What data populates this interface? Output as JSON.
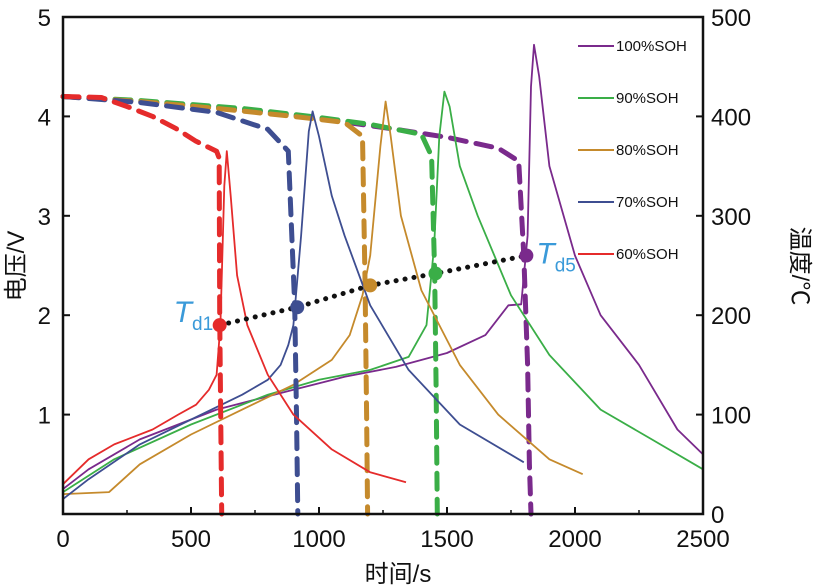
{
  "chart_data": {
    "type": "line",
    "x": {
      "label": "时间/s",
      "lim": [
        0,
        2500
      ],
      "ticks": [
        0,
        500,
        1000,
        1500,
        2000,
        2500
      ]
    },
    "y_left": {
      "label": "电压/V",
      "lim": [
        0,
        5
      ],
      "ticks": [
        1,
        2,
        3,
        4,
        5
      ]
    },
    "y_right": {
      "label": "温度/℃",
      "lim": [
        0,
        500
      ],
      "ticks": [
        0,
        100,
        200,
        300,
        400,
        500
      ]
    },
    "legend": {
      "position": "top-right"
    },
    "series": [
      {
        "name": "100%SOH",
        "color": "#7a2a8c",
        "voltage": [
          [
            0,
            4.2
          ],
          [
            300,
            4.15
          ],
          [
            700,
            4.07
          ],
          [
            1000,
            3.98
          ],
          [
            1300,
            3.87
          ],
          [
            1500,
            3.79
          ],
          [
            1700,
            3.68
          ],
          [
            1780,
            3.55
          ],
          [
            1800,
            2.6
          ],
          [
            1815,
            1.5
          ],
          [
            1822,
            0.5
          ],
          [
            1828,
            0
          ]
        ],
        "temperature": [
          [
            0,
            25
          ],
          [
            100,
            45
          ],
          [
            300,
            75
          ],
          [
            600,
            105
          ],
          [
            900,
            125
          ],
          [
            1100,
            138
          ],
          [
            1300,
            148
          ],
          [
            1500,
            162
          ],
          [
            1650,
            180
          ],
          [
            1740,
            210
          ],
          [
            1790,
            211
          ],
          [
            1815,
            280
          ],
          [
            1828,
            430
          ],
          [
            1840,
            472
          ],
          [
            1860,
            440
          ],
          [
            1900,
            350
          ],
          [
            2000,
            260
          ],
          [
            2100,
            200
          ],
          [
            2250,
            150
          ],
          [
            2400,
            85
          ],
          [
            2500,
            60
          ]
        ]
      },
      {
        "name": "90%SOH",
        "color": "#3aae47",
        "voltage": [
          [
            0,
            4.2
          ],
          [
            300,
            4.16
          ],
          [
            700,
            4.08
          ],
          [
            1000,
            3.99
          ],
          [
            1200,
            3.92
          ],
          [
            1400,
            3.82
          ],
          [
            1440,
            3.6
          ],
          [
            1452,
            2.4
          ],
          [
            1458,
            1.2
          ],
          [
            1462,
            0
          ]
        ],
        "temperature": [
          [
            0,
            22
          ],
          [
            200,
            55
          ],
          [
            500,
            90
          ],
          [
            800,
            120
          ],
          [
            1000,
            135
          ],
          [
            1200,
            145
          ],
          [
            1350,
            158
          ],
          [
            1420,
            190
          ],
          [
            1450,
            270
          ],
          [
            1470,
            380
          ],
          [
            1490,
            425
          ],
          [
            1510,
            410
          ],
          [
            1550,
            350
          ],
          [
            1620,
            300
          ],
          [
            1750,
            220
          ],
          [
            1900,
            160
          ],
          [
            2100,
            105
          ],
          [
            2300,
            75
          ],
          [
            2500,
            45
          ]
        ]
      },
      {
        "name": "80%SOH",
        "color": "#c58a2c",
        "voltage": [
          [
            0,
            4.2
          ],
          [
            300,
            4.15
          ],
          [
            600,
            4.08
          ],
          [
            900,
            4.0
          ],
          [
            1100,
            3.94
          ],
          [
            1170,
            3.8
          ],
          [
            1180,
            2.3
          ],
          [
            1186,
            1.0
          ],
          [
            1190,
            0
          ]
        ],
        "temperature": [
          [
            0,
            20
          ],
          [
            180,
            22
          ],
          [
            300,
            50
          ],
          [
            500,
            80
          ],
          [
            700,
            105
          ],
          [
            900,
            130
          ],
          [
            1050,
            155
          ],
          [
            1120,
            180
          ],
          [
            1170,
            220
          ],
          [
            1200,
            260
          ],
          [
            1240,
            370
          ],
          [
            1260,
            415
          ],
          [
            1280,
            380
          ],
          [
            1320,
            300
          ],
          [
            1400,
            225
          ],
          [
            1550,
            150
          ],
          [
            1700,
            100
          ],
          [
            1900,
            55
          ],
          [
            2030,
            40
          ]
        ]
      },
      {
        "name": "70%SOH",
        "color": "#3e4e91",
        "voltage": [
          [
            0,
            4.2
          ],
          [
            300,
            4.14
          ],
          [
            600,
            4.04
          ],
          [
            800,
            3.87
          ],
          [
            880,
            3.65
          ],
          [
            905,
            2.1
          ],
          [
            912,
            1.0
          ],
          [
            917,
            0
          ]
        ],
        "temperature": [
          [
            0,
            15
          ],
          [
            100,
            35
          ],
          [
            300,
            70
          ],
          [
            500,
            95
          ],
          [
            700,
            120
          ],
          [
            800,
            135
          ],
          [
            850,
            150
          ],
          [
            880,
            170
          ],
          [
            900,
            190
          ],
          [
            930,
            280
          ],
          [
            960,
            385
          ],
          [
            975,
            405
          ],
          [
            1000,
            380
          ],
          [
            1050,
            320
          ],
          [
            1100,
            280
          ],
          [
            1200,
            210
          ],
          [
            1350,
            145
          ],
          [
            1550,
            90
          ],
          [
            1800,
            52
          ]
        ]
      },
      {
        "name": "60%SOH",
        "color": "#e52b2b",
        "voltage": [
          [
            0,
            4.2
          ],
          [
            150,
            4.19
          ],
          [
            250,
            4.1
          ],
          [
            350,
            4.0
          ],
          [
            440,
            3.88
          ],
          [
            520,
            3.75
          ],
          [
            600,
            3.65
          ],
          [
            610,
            3.58
          ],
          [
            612,
            2.0
          ],
          [
            616,
            1.0
          ],
          [
            620,
            0
          ]
        ],
        "temperature": [
          [
            0,
            30
          ],
          [
            100,
            55
          ],
          [
            200,
            70
          ],
          [
            350,
            85
          ],
          [
            450,
            100
          ],
          [
            520,
            110
          ],
          [
            570,
            125
          ],
          [
            600,
            140
          ],
          [
            615,
            190
          ],
          [
            630,
            330
          ],
          [
            640,
            365
          ],
          [
            655,
            320
          ],
          [
            680,
            240
          ],
          [
            720,
            190
          ],
          [
            800,
            140
          ],
          [
            900,
            100
          ],
          [
            1050,
            65
          ],
          [
            1200,
            42
          ],
          [
            1340,
            32
          ]
        ]
      }
    ],
    "td_points": {
      "color": "#111111",
      "points": [
        {
          "series": "60%SOH",
          "x": 612,
          "y": 1.9,
          "color": "#e52b2b"
        },
        {
          "series": "70%SOH",
          "x": 915,
          "y": 2.08,
          "color": "#3e4e91"
        },
        {
          "series": "80%SOH",
          "x": 1200,
          "y": 2.3,
          "color": "#c58a2c"
        },
        {
          "series": "90%SOH",
          "x": 1455,
          "y": 2.42,
          "color": "#3aae47"
        },
        {
          "series": "100%SOH",
          "x": 1810,
          "y": 2.6,
          "color": "#7a2a8c"
        }
      ]
    },
    "annotations": [
      {
        "name": "Td1",
        "main": "T",
        "sub": "d1",
        "anchor": "left",
        "x": 612,
        "y": 1.9
      },
      {
        "name": "Td5",
        "main": "T",
        "sub": "d5",
        "anchor": "right",
        "x": 1810,
        "y": 2.6
      }
    ]
  }
}
